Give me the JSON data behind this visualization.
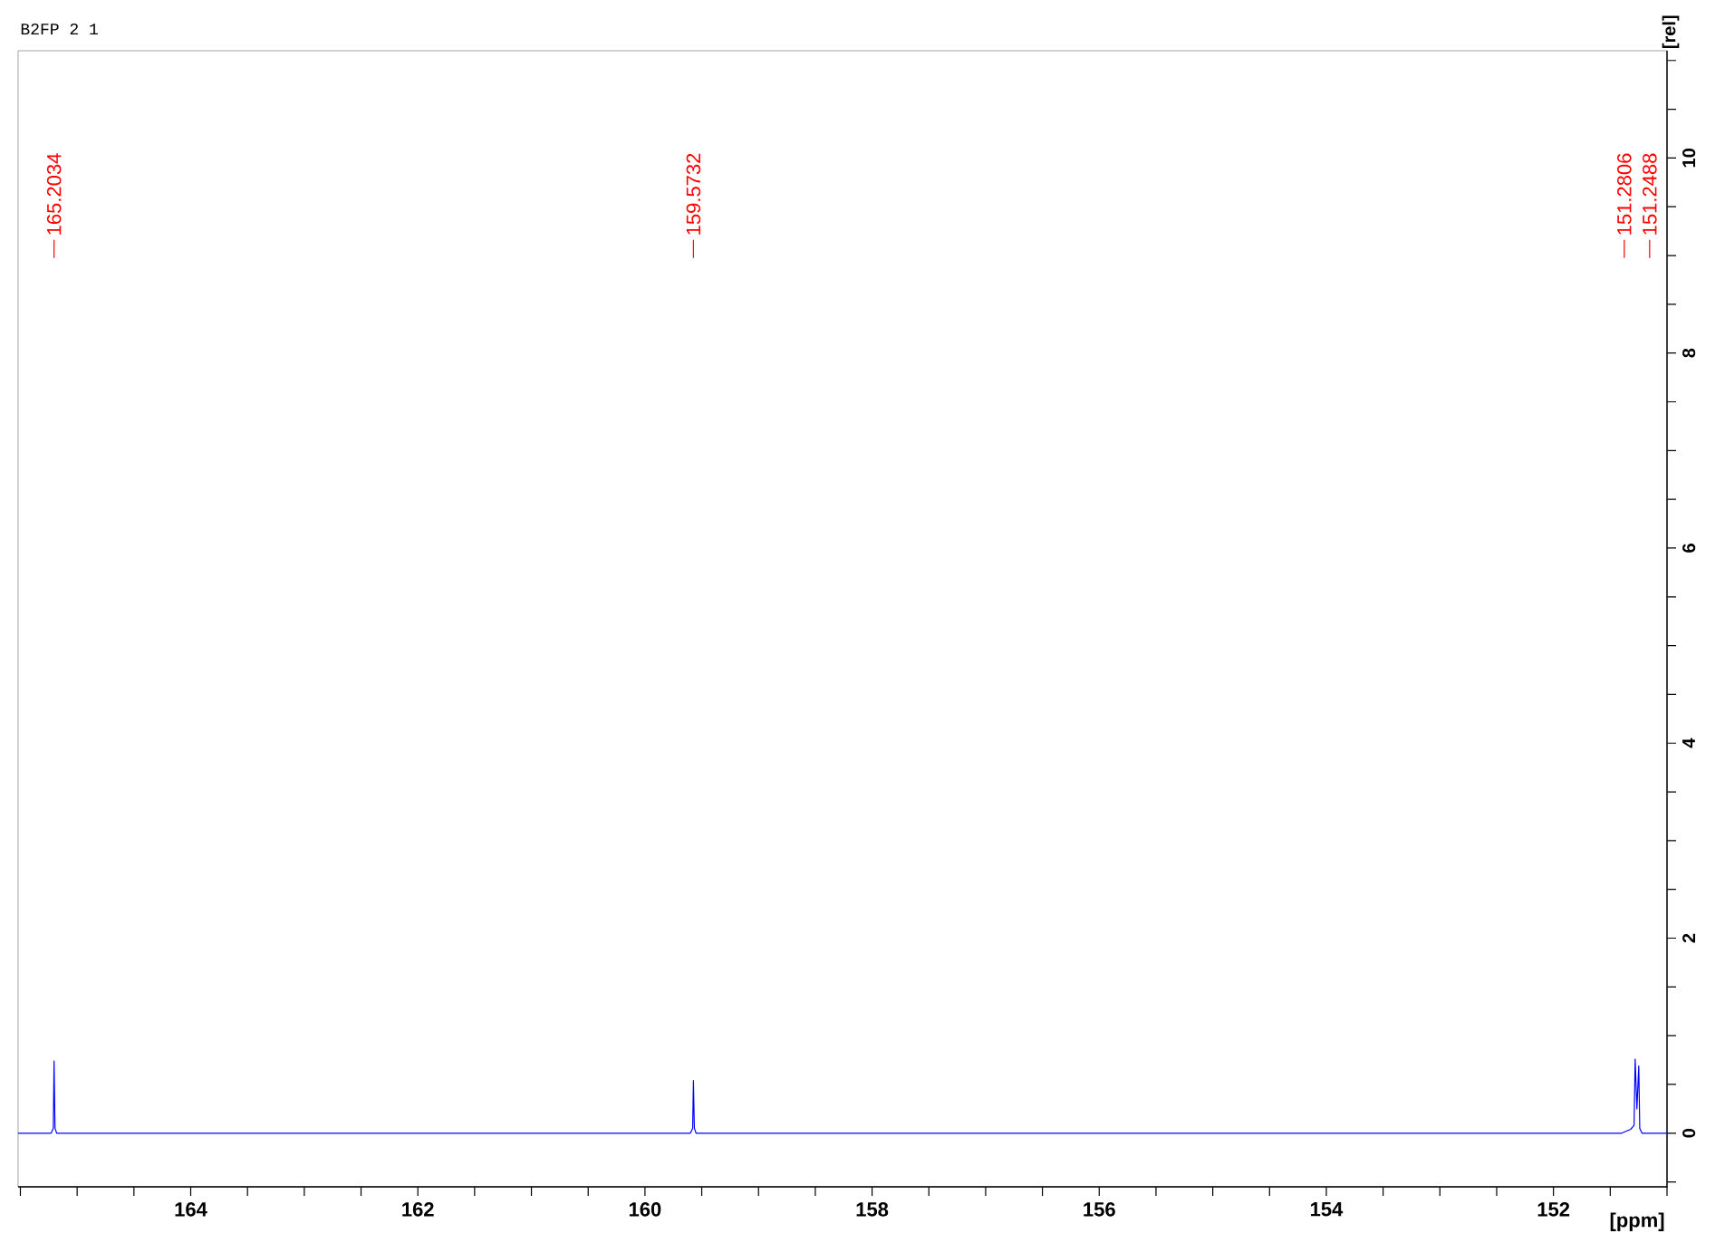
{
  "chart_data": {
    "type": "line",
    "xlabel": "[ppm]",
    "ylabel": "[rel]",
    "xlim": [
      165.52,
      151.0
    ],
    "ylim": [
      -0.55,
      11.1
    ],
    "xticks": [
      {
        "value": 165.5,
        "label": null
      },
      {
        "value": 165.0,
        "label": null
      },
      {
        "value": 164.5,
        "label": null
      },
      164,
      {
        "value": 163.5,
        "label": null
      },
      {
        "value": 163.0,
        "label": null
      },
      {
        "value": 162.5,
        "label": null
      },
      162,
      {
        "value": 161.5,
        "label": null
      },
      {
        "value": 161.0,
        "label": null
      },
      {
        "value": 160.5,
        "label": null
      },
      160,
      {
        "value": 159.5,
        "label": null
      },
      {
        "value": 159.0,
        "label": null
      },
      {
        "value": 158.5,
        "label": null
      },
      158,
      {
        "value": 157.5,
        "label": null
      },
      {
        "value": 157.0,
        "label": null
      },
      {
        "value": 156.5,
        "label": null
      },
      156,
      {
        "value": 155.5,
        "label": null
      },
      {
        "value": 155.0,
        "label": null
      },
      {
        "value": 154.5,
        "label": null
      },
      154,
      {
        "value": 153.5,
        "label": null
      },
      {
        "value": 153.0,
        "label": null
      },
      {
        "value": 152.5,
        "label": null
      },
      152,
      {
        "value": 151.5,
        "label": null
      },
      {
        "value": 151.0,
        "label": null
      }
    ],
    "yticks": [
      {
        "value": -0.5,
        "label": null
      },
      0,
      {
        "value": 0.5,
        "label": null
      },
      {
        "value": 1,
        "label": null
      },
      {
        "value": 1.5,
        "label": null
      },
      2,
      {
        "value": 2.5,
        "label": null
      },
      {
        "value": 3,
        "label": null
      },
      {
        "value": 3.5,
        "label": null
      },
      4,
      {
        "value": 4.5,
        "label": null
      },
      {
        "value": 5,
        "label": null
      },
      {
        "value": 5.5,
        "label": null
      },
      6,
      {
        "value": 6.5,
        "label": null
      },
      {
        "value": 7,
        "label": null
      },
      {
        "value": 7.5,
        "label": null
      },
      8,
      {
        "value": 8.5,
        "label": null
      },
      {
        "value": 9,
        "label": null
      },
      {
        "value": 9.5,
        "label": null
      },
      10,
      {
        "value": 10.5,
        "label": null
      },
      {
        "value": 11,
        "label": null
      }
    ],
    "grid": false,
    "marker": "none",
    "line_style": "solid",
    "series": [
      {
        "color": "#0000ff",
        "x": [
          165.52,
          165.23,
          165.21,
          165.2034,
          165.195,
          165.18,
          159.6,
          159.58,
          159.5732,
          159.565,
          159.55,
          151.4,
          151.32,
          151.29,
          151.2806,
          151.265,
          151.2488,
          151.24,
          151.22,
          151.0
        ],
        "values": [
          0,
          0,
          0.05,
          0.74,
          0.05,
          0,
          0,
          0.05,
          0.54,
          0.05,
          0,
          0,
          0.04,
          0.08,
          0.76,
          0.25,
          0.69,
          0.05,
          0,
          0
        ]
      }
    ],
    "annotations": [
      "B2FP  2  1",
      "165.2034",
      "159.5732",
      "151.2806",
      "151.2488"
    ]
  }
}
